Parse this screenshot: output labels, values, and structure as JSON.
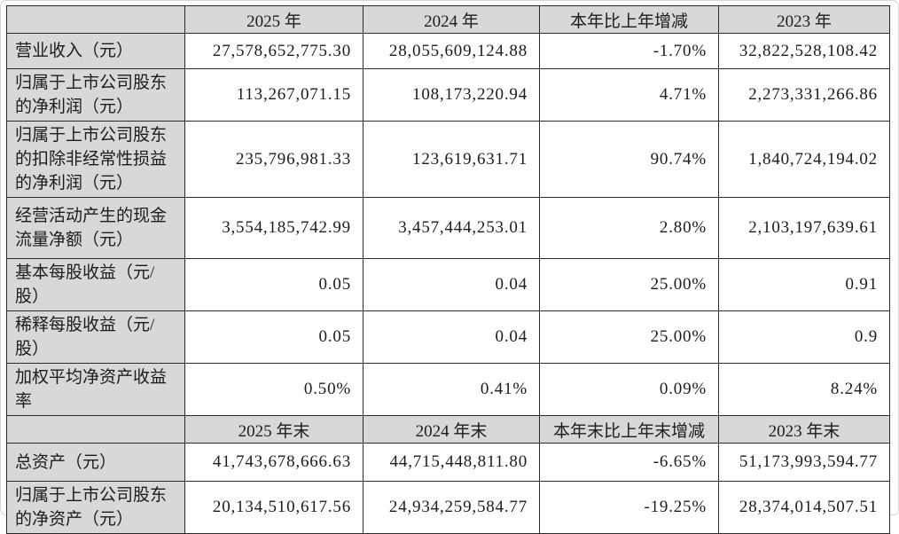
{
  "colors": {
    "header_bg": "#d8d8d8",
    "label_bg": "#d8d8d8",
    "cell_bg": "#ffffff",
    "grid_line": "#2a2a2a",
    "text": "#1c1c1c"
  },
  "table": {
    "period_header": [
      "",
      "2025 年",
      "2024 年",
      "本年比上年增减",
      "2023 年"
    ],
    "rows_period": [
      {
        "label": "营业收入（元）",
        "cells": [
          "27,578,652,775.30",
          "28,055,609,124.88",
          "-1.70%",
          "32,822,528,108.42"
        ]
      },
      {
        "label": "归属于上市公司股东的净利润（元）",
        "cells": [
          "113,267,071.15",
          "108,173,220.94",
          "4.71%",
          "2,273,331,266.86"
        ]
      },
      {
        "label": "归属于上市公司股东的扣除非经常性损益的净利润（元）",
        "cells": [
          "235,796,981.33",
          "123,619,631.71",
          "90.74%",
          "1,840,724,194.02"
        ]
      },
      {
        "label": "经营活动产生的现金流量净额（元）",
        "cells": [
          "3,554,185,742.99",
          "3,457,444,253.01",
          "2.80%",
          "2,103,197,639.61"
        ]
      },
      {
        "label": "基本每股收益（元/股）",
        "cells": [
          "0.05",
          "0.04",
          "25.00%",
          "0.91"
        ]
      },
      {
        "label": "稀释每股收益（元/股）",
        "cells": [
          "0.05",
          "0.04",
          "25.00%",
          "0.9"
        ]
      },
      {
        "label": "加权平均净资产收益率",
        "cells": [
          "0.50%",
          "0.41%",
          "0.09%",
          "8.24%"
        ]
      }
    ],
    "yearend_header": [
      "",
      "2025 年末",
      "2024 年末",
      "本年末比上年末增减",
      "2023 年末"
    ],
    "rows_yearend": [
      {
        "label": "总资产（元）",
        "cells": [
          "41,743,678,666.63",
          "44,715,448,811.80",
          "-6.65%",
          "51,173,993,594.77"
        ]
      },
      {
        "label": "归属于上市公司股东的净资产（元）",
        "cells": [
          "20,134,510,617.56",
          "24,934,259,584.77",
          "-19.25%",
          "28,374,014,507.51"
        ]
      }
    ]
  }
}
